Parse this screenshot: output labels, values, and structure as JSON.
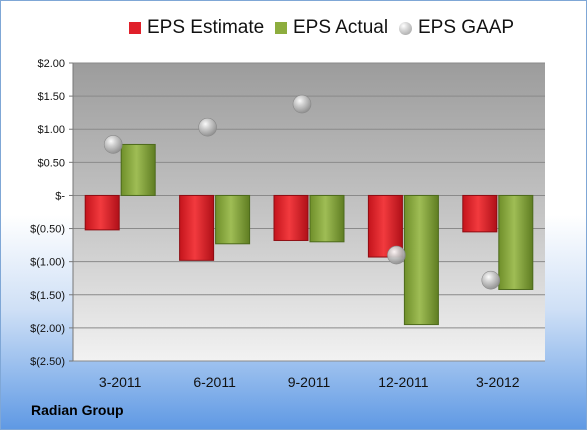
{
  "chart_data": {
    "type": "bar",
    "categories": [
      "3-2011",
      "6-2011",
      "9-2011",
      "12-2011",
      "3-2012"
    ],
    "series": [
      {
        "name": "EPS Estimate",
        "kind": "bar",
        "color": "#e0202a",
        "values": [
          -0.52,
          -0.98,
          -0.68,
          -0.93,
          -0.55
        ]
      },
      {
        "name": "EPS Actual",
        "kind": "bar",
        "color": "#8dad3e",
        "values": [
          0.77,
          -0.73,
          -0.7,
          -1.95,
          -1.42
        ]
      },
      {
        "name": "EPS GAAP",
        "kind": "marker",
        "color": "#a8a8a8",
        "values": [
          0.77,
          1.03,
          1.38,
          -0.9,
          -1.28
        ]
      }
    ],
    "ylim": [
      -2.5,
      2.0
    ],
    "yticks": [
      2.0,
      1.5,
      1.0,
      0.5,
      0,
      -0.5,
      -1.0,
      -1.5,
      -2.0,
      -2.5
    ],
    "ytick_labels": [
      "$2.00",
      "$1.50",
      "$1.00",
      "$0.50",
      "$-",
      "$(0.50)",
      "$(1.00)",
      "$(1.50)",
      "$(2.00)",
      "$(2.50)"
    ],
    "grid": true,
    "legend_position": "top",
    "source_label": "Radian Group"
  }
}
